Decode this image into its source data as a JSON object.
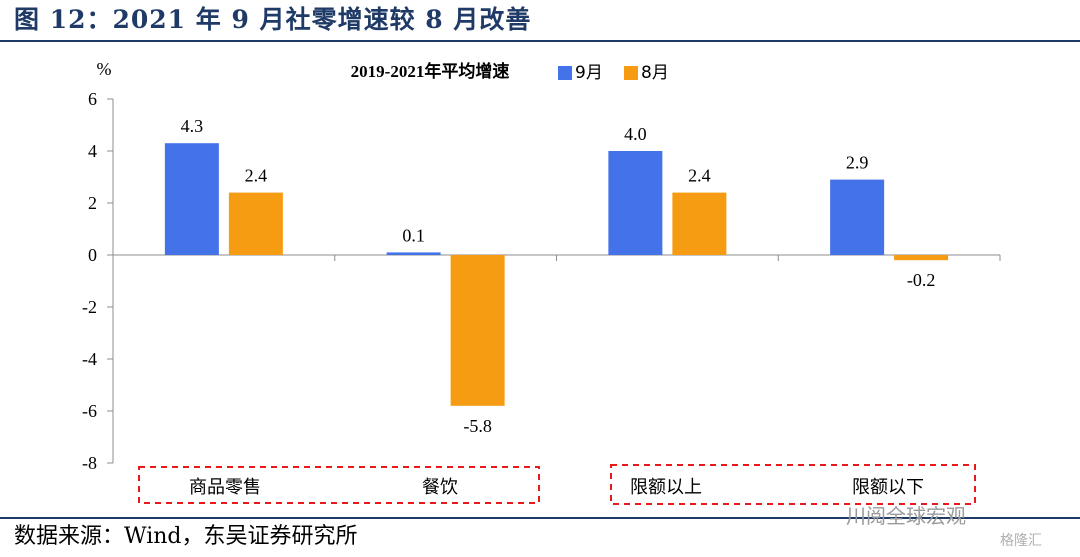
{
  "figure_title": "图 12：2021 年 9 月社零增速较 8 月改善",
  "source_note": "数据来源：Wind，东吴证券研究所",
  "watermark": "川阅全球宏观",
  "watermark_sub": "格隆汇",
  "colors": {
    "sep": "#4472e8",
    "aug": "#f59c12",
    "box": "#e8191b",
    "title": "#1f3a66"
  },
  "chart_data": {
    "type": "bar",
    "title": "2019-2021年平均增速",
    "ylabel": "%",
    "ylim": [
      -8,
      6
    ],
    "yticks": [
      6,
      4,
      2,
      0,
      -2,
      -4,
      -6,
      -8
    ],
    "categories": [
      "商品零售",
      "餐饮",
      "限额以上",
      "限额以下"
    ],
    "series": [
      {
        "name": "9月",
        "values": [
          4.3,
          0.1,
          4.0,
          2.9
        ]
      },
      {
        "name": "8月",
        "values": [
          2.4,
          -5.8,
          2.4,
          -0.2
        ]
      }
    ],
    "legend_position": "top-center",
    "grid": false
  }
}
